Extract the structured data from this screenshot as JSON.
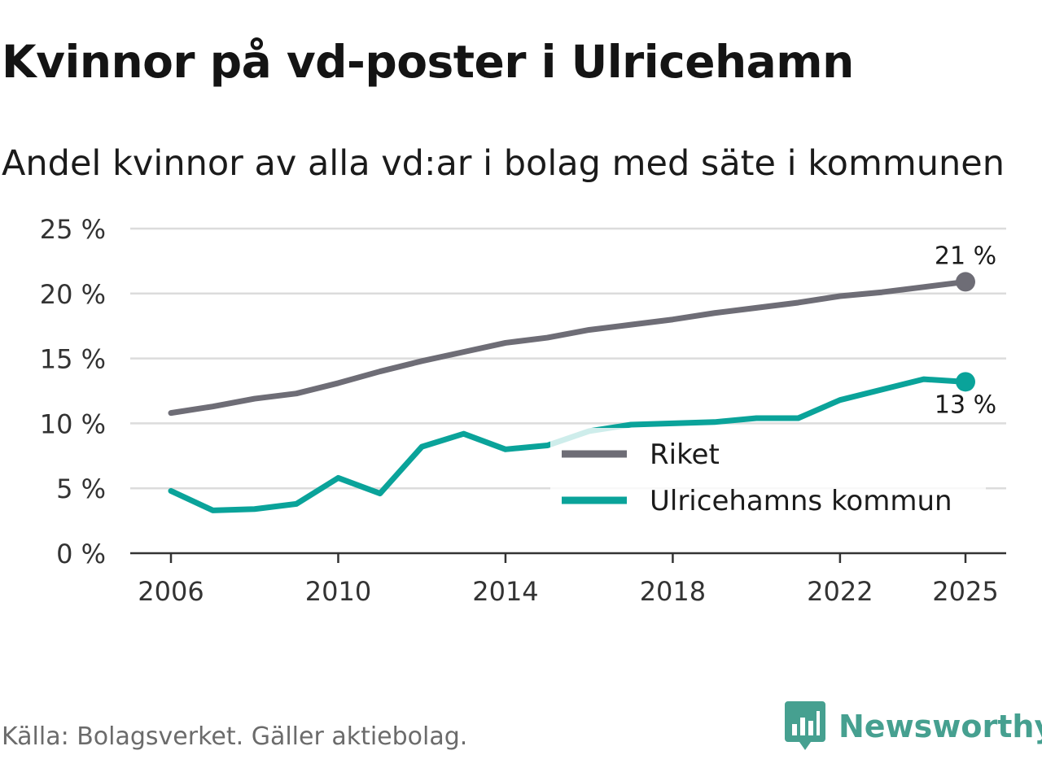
{
  "header": {
    "title": "Kvinnor på vd-poster i Ulricehamn",
    "subtitle": "Andel kvinnor av alla vd:ar i bolag med säte i kommunen"
  },
  "footer": {
    "source": "Källa: Bolagsverket. Gäller aktiebolag.",
    "brand": "Newsworthy",
    "brand_icon": "newsworthy-logo-icon"
  },
  "colors": {
    "riket": "#6e6d76",
    "kommun": "#0aa39a",
    "grid": "#dcdcdc",
    "axis": "#333333",
    "brand": "#46a090"
  },
  "chart_data": {
    "type": "line",
    "x": [
      2006,
      2007,
      2008,
      2009,
      2010,
      2011,
      2012,
      2013,
      2014,
      2015,
      2016,
      2017,
      2018,
      2019,
      2020,
      2021,
      2022,
      2023,
      2024,
      2025
    ],
    "xticks": [
      "2006",
      "2010",
      "2014",
      "2018",
      "2022",
      "2025"
    ],
    "yticks": [
      "0 %",
      "5 %",
      "10 %",
      "15 %",
      "20 %",
      "25 %"
    ],
    "ylim": [
      0,
      25
    ],
    "series": [
      {
        "name": "Riket",
        "values": [
          10.8,
          11.3,
          11.9,
          12.3,
          13.1,
          14.0,
          14.8,
          15.5,
          16.2,
          16.6,
          17.2,
          17.6,
          18.0,
          18.5,
          18.9,
          19.3,
          19.8,
          20.1,
          20.5,
          20.9
        ],
        "end_label": "21 %"
      },
      {
        "name": "Ulricehamns kommun",
        "values": [
          4.8,
          3.3,
          3.4,
          3.8,
          5.8,
          4.6,
          8.2,
          9.2,
          8.0,
          8.3,
          9.4,
          9.9,
          10.0,
          10.1,
          10.4,
          10.4,
          11.8,
          12.6,
          13.4,
          13.2
        ],
        "end_label": "13 %"
      }
    ],
    "title": "Kvinnor på vd-poster i Ulricehamn",
    "xlabel": "",
    "ylabel": "",
    "grid": true,
    "legend_position": "bottom-right"
  }
}
